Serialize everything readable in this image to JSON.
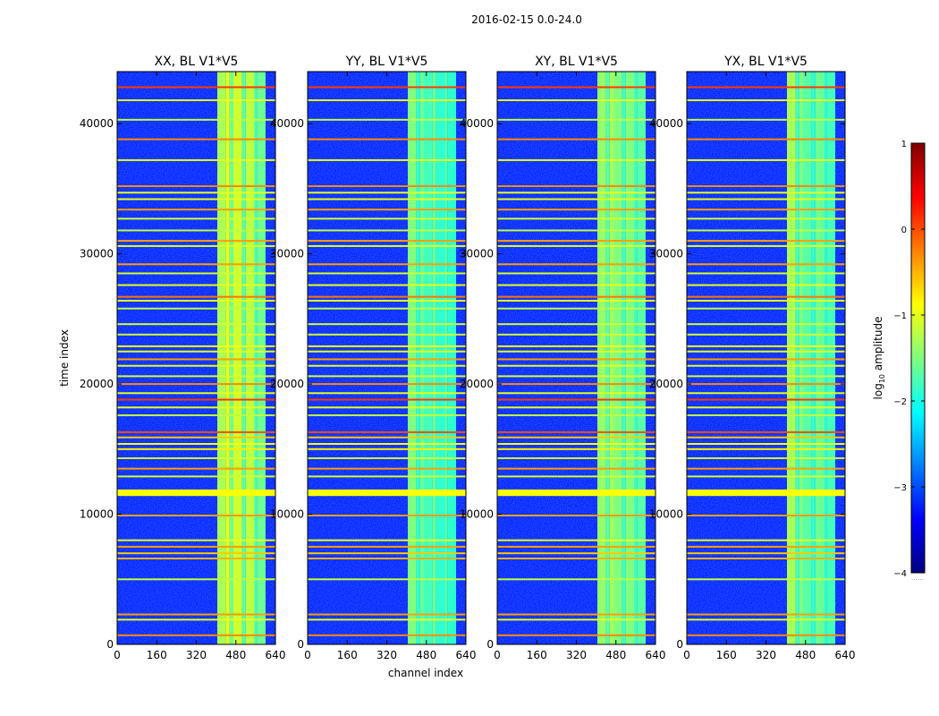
{
  "figure": {
    "suptitle": "2016-02-15 0.0-24.0",
    "xlabel": "channel index",
    "ylabel": "time index"
  },
  "colorbar": {
    "label": "log$_{10}$ amplitude",
    "label_main": "log",
    "label_sub": "10",
    "label_rest": " amplitude",
    "range": [
      -4,
      1
    ],
    "ticks": [
      1,
      0,
      -1,
      -2,
      -3,
      -4
    ],
    "tick_labels": [
      "1",
      "0",
      "−1",
      "−2",
      "−3",
      "−4"
    ],
    "colormap": "jet",
    "extension_marker": "……"
  },
  "chart_data": {
    "type": "heatmap",
    "title": "2016-02-15 0.0-24.0",
    "xlabel": "channel index",
    "ylabel": "time index",
    "xlim": [
      0,
      640
    ],
    "ylim": [
      0,
      44000
    ],
    "xticks": [
      0,
      160,
      320,
      480,
      640
    ],
    "xtick_labels": [
      "0",
      "160",
      "320",
      "480",
      "640"
    ],
    "yticks": [
      0,
      10000,
      20000,
      30000,
      40000
    ],
    "ytick_labels": [
      "0",
      "10000",
      "20000",
      "30000",
      "40000"
    ],
    "value_label": "log10 amplitude",
    "value_range": [
      -4,
      1
    ],
    "background_level": -3.2,
    "panels": [
      {
        "title": "XX, BL V1*V5",
        "band_channels": [
          405,
          600
        ],
        "stripes": [
          {
            "x0": 405,
            "x1": 440,
            "level": -1.3
          },
          {
            "x0": 440,
            "x1": 455,
            "level": -1.0
          },
          {
            "x0": 455,
            "x1": 470,
            "level": -1.6
          },
          {
            "x0": 470,
            "x1": 505,
            "level": -1.1
          },
          {
            "x0": 505,
            "x1": 520,
            "level": -1.7
          },
          {
            "x0": 520,
            "x1": 555,
            "level": -1.2
          },
          {
            "x0": 555,
            "x1": 565,
            "level": -1.8
          },
          {
            "x0": 565,
            "x1": 600,
            "level": -1.6
          }
        ]
      },
      {
        "title": "YY, BL V1*V5",
        "band_channels": [
          405,
          600
        ],
        "stripes": [
          {
            "x0": 405,
            "x1": 440,
            "level": -1.5
          },
          {
            "x0": 440,
            "x1": 455,
            "level": -1.9
          },
          {
            "x0": 455,
            "x1": 470,
            "level": -1.6
          },
          {
            "x0": 470,
            "x1": 505,
            "level": -1.8
          },
          {
            "x0": 505,
            "x1": 520,
            "level": -1.6
          },
          {
            "x0": 520,
            "x1": 555,
            "level": -1.9
          },
          {
            "x0": 555,
            "x1": 565,
            "level": -1.7
          },
          {
            "x0": 565,
            "x1": 600,
            "level": -1.9
          }
        ]
      },
      {
        "title": "XY, BL V1*V5",
        "band_channels": [
          405,
          600
        ],
        "stripes": [
          {
            "x0": 405,
            "x1": 440,
            "level": -1.4
          },
          {
            "x0": 440,
            "x1": 455,
            "level": -1.7
          },
          {
            "x0": 455,
            "x1": 470,
            "level": -1.3
          },
          {
            "x0": 470,
            "x1": 505,
            "level": -1.5
          },
          {
            "x0": 505,
            "x1": 520,
            "level": -1.8
          },
          {
            "x0": 520,
            "x1": 555,
            "level": -1.5
          },
          {
            "x0": 555,
            "x1": 565,
            "level": -1.9
          },
          {
            "x0": 565,
            "x1": 600,
            "level": -1.7
          }
        ]
      },
      {
        "title": "YX, BL V1*V5",
        "band_channels": [
          405,
          600
        ],
        "stripes": [
          {
            "x0": 405,
            "x1": 440,
            "level": -1.3
          },
          {
            "x0": 440,
            "x1": 455,
            "level": -1.8
          },
          {
            "x0": 455,
            "x1": 470,
            "level": -1.5
          },
          {
            "x0": 470,
            "x1": 505,
            "level": -1.7
          },
          {
            "x0": 505,
            "x1": 520,
            "level": -1.9
          },
          {
            "x0": 520,
            "x1": 555,
            "level": -1.6
          },
          {
            "x0": 555,
            "x1": 565,
            "level": -1.9
          },
          {
            "x0": 565,
            "x1": 600,
            "level": -1.8
          }
        ]
      }
    ],
    "rfi_rows": [
      {
        "t": 42800,
        "level": 0.1
      },
      {
        "t": 41800,
        "level": -1.0
      },
      {
        "t": 40300,
        "level": -1.2
      },
      {
        "t": 38800,
        "level": -0.3
      },
      {
        "t": 37200,
        "level": -1.0
      },
      {
        "t": 35200,
        "level": -0.3
      },
      {
        "t": 34700,
        "level": -1.0
      },
      {
        "t": 34200,
        "level": -1.0
      },
      {
        "t": 33400,
        "level": -0.4
      },
      {
        "t": 32700,
        "level": -1.1
      },
      {
        "t": 31800,
        "level": -1.2
      },
      {
        "t": 31000,
        "level": -0.4
      },
      {
        "t": 30600,
        "level": -1.0
      },
      {
        "t": 29200,
        "level": -0.4
      },
      {
        "t": 28500,
        "level": -1.1
      },
      {
        "t": 27600,
        "level": -1.0
      },
      {
        "t": 26700,
        "level": -0.2
      },
      {
        "t": 26400,
        "level": -1.0
      },
      {
        "t": 25800,
        "level": -1.2
      },
      {
        "t": 24600,
        "level": -1.1
      },
      {
        "t": 23800,
        "level": -1.1
      },
      {
        "t": 22900,
        "level": -0.9
      },
      {
        "t": 22500,
        "level": -1.0
      },
      {
        "t": 21900,
        "level": -0.4
      },
      {
        "t": 21400,
        "level": -1.0
      },
      {
        "t": 20600,
        "level": -1.1
      },
      {
        "t": 20000,
        "level": -0.3
      },
      {
        "t": 19300,
        "level": -1.0
      },
      {
        "t": 18800,
        "level": 0.1
      },
      {
        "t": 18200,
        "level": -1.0
      },
      {
        "t": 17600,
        "level": -1.2
      },
      {
        "t": 16300,
        "level": 0.0
      },
      {
        "t": 15900,
        "level": -0.6
      },
      {
        "t": 15400,
        "level": -0.9
      },
      {
        "t": 15000,
        "level": -0.8
      },
      {
        "t": 14300,
        "level": -1.1
      },
      {
        "t": 13500,
        "level": -0.4
      },
      {
        "t": 12900,
        "level": -1.1
      },
      {
        "t": 11700,
        "level": -0.9
      },
      {
        "t": 9900,
        "level": -0.4
      },
      {
        "t": 8000,
        "level": -1.0
      },
      {
        "t": 7500,
        "level": -0.4
      },
      {
        "t": 7000,
        "level": -0.6
      },
      {
        "t": 6600,
        "level": -0.5
      },
      {
        "t": 5000,
        "level": -1.2
      },
      {
        "t": 2300,
        "level": -0.4
      },
      {
        "t": 1900,
        "level": -1.0
      },
      {
        "t": 700,
        "level": -0.3
      }
    ]
  }
}
